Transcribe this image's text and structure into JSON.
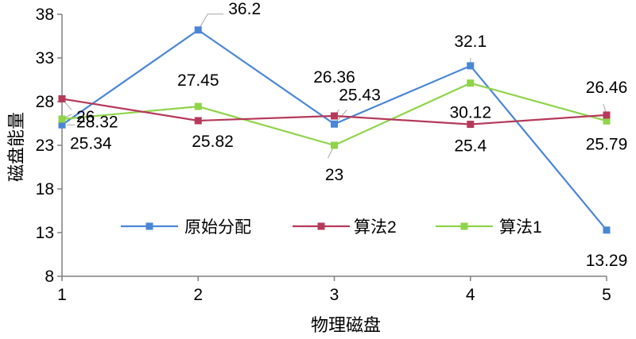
{
  "chart_data": {
    "type": "line",
    "title": "",
    "xlabel": "物理磁盘",
    "ylabel": "磁盘能量",
    "x": [
      1,
      2,
      3,
      4,
      5
    ],
    "ylim": [
      8,
      38
    ],
    "yticks": [
      8,
      13,
      18,
      23,
      28,
      33,
      38
    ],
    "grid": false,
    "legend_position": "bottom-center (inside plot)",
    "series": [
      {
        "name": "原始分配",
        "color": "#4a86d6",
        "values": [
          25.34,
          36.2,
          25.43,
          32.1,
          13.29
        ]
      },
      {
        "name": "算法2",
        "color": "#b53a5a",
        "values": [
          28.32,
          25.82,
          26.36,
          25.4,
          26.46
        ]
      },
      {
        "name": "算法1",
        "color": "#8fd44a",
        "values": [
          26,
          27.45,
          23,
          30.12,
          25.79
        ]
      }
    ],
    "data_labels": [
      "28.32",
      "26",
      "25.34",
      "36.2",
      "27.45",
      "25.82",
      "26.36",
      "25.43",
      "23",
      "32.1",
      "30.12",
      "25.4",
      "26.46",
      "25.79",
      "13.29"
    ]
  }
}
